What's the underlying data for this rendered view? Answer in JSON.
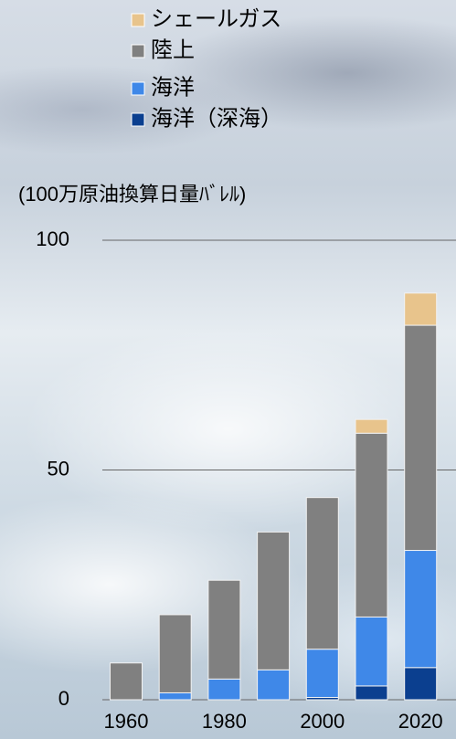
{
  "chart_data": {
    "type": "bar",
    "stacked": true,
    "y_axis_label": "(100万原油換算日量ﾊﾞﾚﾙ)",
    "categories": [
      "1960",
      null,
      "1980",
      null,
      "2000",
      null,
      "2020"
    ],
    "series": [
      {
        "name": "海洋（深海）",
        "color": "#0b3f8f",
        "values": [
          0,
          0,
          0,
          0,
          0.5,
          3,
          7
        ]
      },
      {
        "name": "海洋",
        "color": "#3f88e8",
        "values": [
          0,
          1.5,
          4.5,
          6.5,
          10.5,
          15,
          25.5
        ]
      },
      {
        "name": "陸上",
        "color": "#808080",
        "values": [
          8,
          17,
          21.5,
          30,
          33,
          40,
          49
        ]
      },
      {
        "name": "シェールガス",
        "color": "#e8c48c",
        "values": [
          0,
          0,
          0,
          0,
          0,
          3,
          7
        ]
      }
    ],
    "ylim": [
      0,
      100
    ],
    "yticks": [
      0,
      50,
      100
    ],
    "grid": true
  }
}
